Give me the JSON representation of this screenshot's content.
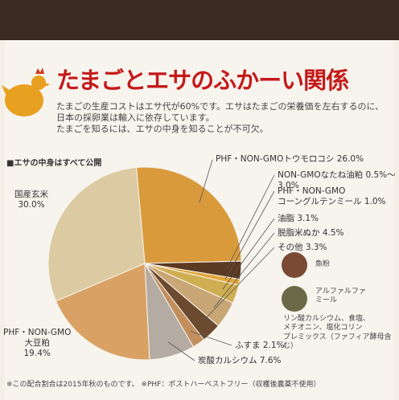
{
  "header": {
    "title": "たまごとエサのふかーい関係",
    "body": [
      "たまごの生産コストはエサ代が60%です。エサはたまごの栄養価を左右するのに、",
      "日本の採卵業は輸入に依存しています。",
      "たまごを知るには、エサの中身を知ることが不可欠。"
    ]
  },
  "chart_data": {
    "type": "pie",
    "title": "■エサの中身はすべて公開",
    "categories": [
      "PHF・NON-GMOトウモロコシ",
      "NON-GMOなたね油粕",
      "PHF・NON-GMO\nコーングルテンミール",
      "油脂",
      "脱脂米ぬか",
      "その他",
      "ふすま",
      "炭酸カルシウム",
      "PHF・NON-GMO\n大豆粕",
      "国産玄米"
    ],
    "values": [
      26.0,
      3.0,
      1.0,
      3.1,
      4.5,
      3.3,
      2.1,
      7.6,
      19.4,
      30.0
    ],
    "value_labels": [
      "26.0%",
      "0.5%〜3.0%",
      "1.0%",
      "3.1%",
      "4.5%",
      "3.3%",
      "2.1%",
      "7.6%",
      "19.4%",
      "30.0%"
    ],
    "colors": [
      "#d99a3c",
      "#5b3a22",
      "#e3a83a",
      "#cfae52",
      "#c9a676",
      "#6b4a30",
      "#c28f5c",
      "#b4aca2",
      "#d9a264",
      "#dccaa2"
    ]
  },
  "notes": [
    "魚粉",
    "アルファルファ\nミール",
    "リン酸カルシウム、食塩、\nメチオニン、塩化コリン\nプレミックス（ファフィア酵母含む）"
  ],
  "footnote": "※この配合割合は2015年秋のものです。 ※PHF：ポストハーベストフリー（収穫後農薬不使用）"
}
